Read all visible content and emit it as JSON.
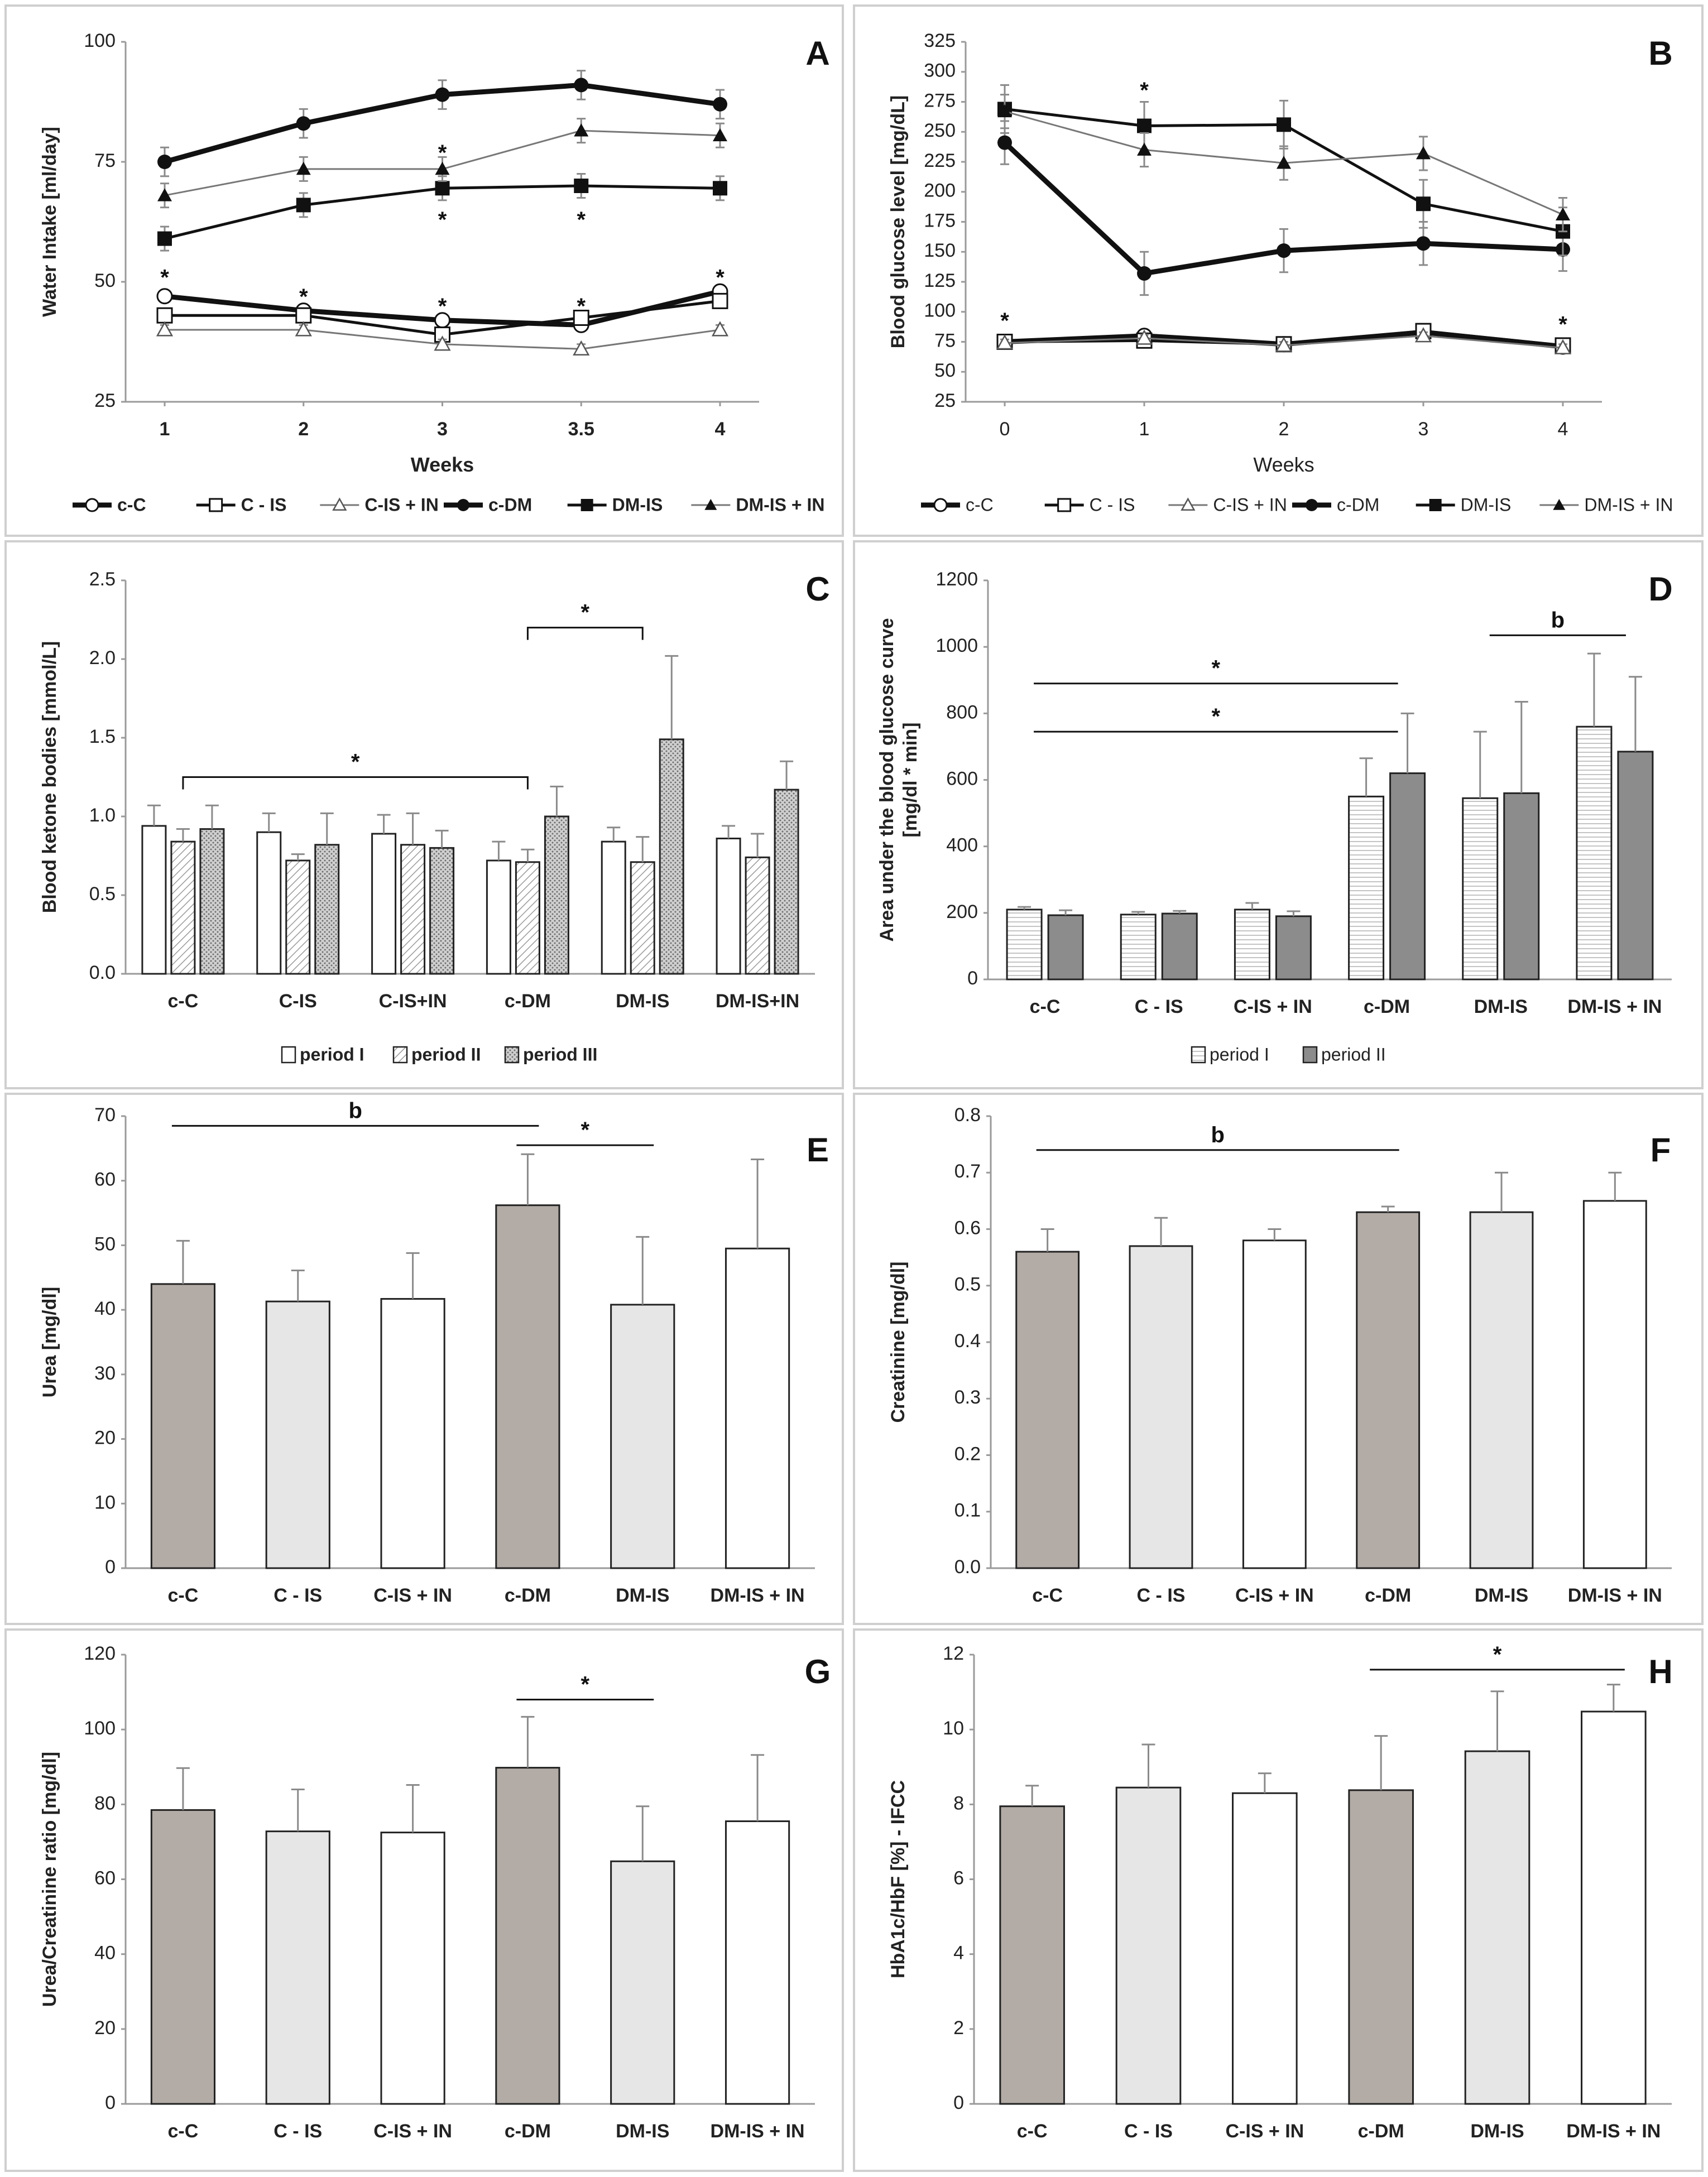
{
  "figure": {
    "colors": {
      "darkGray": "#b2aba6",
      "lightGray": "#e6e6e6",
      "white": "#ffffff",
      "medGray": "#8c8c8c",
      "black": "#111111"
    }
  },
  "chart_data": [
    {
      "panel": "A",
      "type": "line",
      "xlabel": "Weeks",
      "ylabel": "Water Intake [ml/day]",
      "x": [
        "1",
        "2",
        "3",
        "3.5",
        "4"
      ],
      "ylim": [
        25,
        100
      ],
      "yticks": [
        25,
        50,
        75,
        100
      ],
      "series": [
        {
          "name": "c-C",
          "marker": "circle-open",
          "weight": "thick",
          "values": [
            47,
            44,
            42,
            41,
            48
          ],
          "err": [
            1,
            1,
            1,
            1,
            1
          ]
        },
        {
          "name": "C - IS",
          "marker": "square-open",
          "weight": "medium",
          "values": [
            43,
            43,
            39,
            42.5,
            46
          ],
          "err": [
            1,
            1,
            1,
            1,
            1
          ]
        },
        {
          "name": "C-IS + IN",
          "marker": "triangle-open",
          "weight": "thin",
          "values": [
            40,
            40,
            37,
            36,
            40
          ],
          "err": [
            1,
            1,
            1,
            1,
            1
          ]
        },
        {
          "name": "c-DM",
          "marker": "circle-filled",
          "weight": "thick",
          "values": [
            75,
            83,
            89,
            91,
            87
          ],
          "err": [
            3,
            3,
            3,
            3,
            3
          ]
        },
        {
          "name": "DM-IS",
          "marker": "square-filled",
          "weight": "medium",
          "values": [
            59,
            66,
            69.5,
            70,
            69.5
          ],
          "err": [
            2.5,
            2.5,
            2.5,
            2.5,
            2.5
          ]
        },
        {
          "name": "DM-IS + IN",
          "marker": "triangle-filled",
          "weight": "thin",
          "values": [
            68,
            73.5,
            73.5,
            81.5,
            80.5
          ],
          "err": [
            2.5,
            2.5,
            2.5,
            2.5,
            2.5
          ]
        }
      ],
      "annotations": [
        {
          "text": "*",
          "x": "1",
          "y": 51
        },
        {
          "text": "*",
          "x": "2",
          "y": 47
        },
        {
          "text": "*",
          "x": "3",
          "y": 45
        },
        {
          "text": "*",
          "x": "3.5",
          "y": 45
        },
        {
          "text": "*",
          "x": "4",
          "y": 51
        },
        {
          "text": "*",
          "x": "3",
          "y": 77
        },
        {
          "text": "*",
          "x": "3",
          "y": 63
        },
        {
          "text": "*",
          "x": "3.5",
          "y": 63
        }
      ],
      "title": "A"
    },
    {
      "panel": "B",
      "type": "line",
      "xlabel": "Weeks",
      "ylabel": "Blood glucose level [mg/dL]",
      "x": [
        "0",
        "1",
        "2",
        "3",
        "4"
      ],
      "ylim": [
        25,
        325
      ],
      "yticks": [
        25,
        50,
        75,
        100,
        125,
        150,
        175,
        200,
        225,
        250,
        275,
        300,
        325
      ],
      "series": [
        {
          "name": "c-C",
          "marker": "circle-open",
          "weight": "thick",
          "values": [
            75,
            80,
            73,
            83,
            71
          ],
          "err": [
            3,
            3,
            3,
            3,
            3
          ]
        },
        {
          "name": "C - IS",
          "marker": "square-open",
          "weight": "medium",
          "values": [
            75,
            76,
            73,
            84,
            72
          ],
          "err": [
            3,
            3,
            3,
            3,
            3
          ]
        },
        {
          "name": "C-IS + IN",
          "marker": "triangle-open",
          "weight": "thin",
          "values": [
            74,
            78,
            72,
            80,
            70
          ],
          "err": [
            3,
            3,
            3,
            3,
            3
          ]
        },
        {
          "name": "c-DM",
          "marker": "circle-filled",
          "weight": "thick",
          "values": [
            241,
            132,
            151,
            157,
            152
          ],
          "err": [
            18,
            18,
            18,
            18,
            18
          ]
        },
        {
          "name": "DM-IS",
          "marker": "square-filled",
          "weight": "medium",
          "values": [
            269,
            255,
            256,
            190,
            167
          ],
          "err": [
            20,
            20,
            20,
            20,
            20
          ]
        },
        {
          "name": "DM-IS + IN",
          "marker": "triangle-filled",
          "weight": "thin",
          "values": [
            267,
            235,
            224,
            232,
            181
          ],
          "err": [
            14,
            14,
            14,
            14,
            14
          ]
        }
      ],
      "annotations": [
        {
          "text": "*",
          "x": "0",
          "y": 93
        },
        {
          "text": "*",
          "x": "1",
          "y": 285
        },
        {
          "text": "*",
          "x": "4",
          "y": 90
        }
      ],
      "title": "B"
    },
    {
      "panel": "C",
      "type": "bar",
      "ylabel": "Blood ketone bodies [mmol/L]",
      "categories": [
        "c-C",
        "C-IS",
        "C-IS+IN",
        "c-DM",
        "DM-IS",
        "DM-IS+IN"
      ],
      "ylim": [
        0,
        2.5
      ],
      "yticks": [
        "0.0",
        "0.5",
        "1.0",
        "1.5",
        "2.0",
        "2.5"
      ],
      "series": [
        {
          "name": "period I",
          "pattern": "plain",
          "values": [
            0.94,
            0.9,
            0.89,
            0.72,
            0.84,
            0.86
          ],
          "err": [
            0.13,
            0.12,
            0.12,
            0.12,
            0.09,
            0.08
          ]
        },
        {
          "name": "period II",
          "pattern": "diagonal",
          "values": [
            0.84,
            0.72,
            0.82,
            0.71,
            0.71,
            0.74
          ],
          "err": [
            0.08,
            0.04,
            0.2,
            0.08,
            0.16,
            0.15
          ]
        },
        {
          "name": "period III",
          "pattern": "dots",
          "values": [
            0.92,
            0.82,
            0.8,
            1.0,
            1.49,
            1.17
          ],
          "err": [
            0.15,
            0.2,
            0.11,
            0.19,
            0.53,
            0.18
          ]
        }
      ],
      "annotations": [
        {
          "text": "*",
          "from": "c-C",
          "to": "c-DM",
          "y": 1.25
        },
        {
          "text": "*",
          "from": "c-DM",
          "to": "DM-IS",
          "y": 2.2
        }
      ],
      "title": "C"
    },
    {
      "panel": "D",
      "type": "bar",
      "ylabel": "Area under the blood glucose curve [mg/dl * min]",
      "ylabel_lines": [
        "Area under the blood glucose curve",
        "[mg/dl * min]"
      ],
      "categories": [
        "c-C",
        "C - IS",
        "C-IS + IN",
        "c-DM",
        "DM-IS",
        "DM-IS + IN"
      ],
      "ylim": [
        0,
        1200
      ],
      "yticks": [
        0,
        200,
        400,
        600,
        800,
        1000,
        1200
      ],
      "series": [
        {
          "name": "period I",
          "pattern": "hlines",
          "values": [
            210,
            195,
            210,
            550,
            545,
            760
          ],
          "err": [
            8,
            8,
            20,
            115,
            200,
            220
          ]
        },
        {
          "name": "period II",
          "pattern": "solid-gray",
          "values": [
            193,
            198,
            190,
            620,
            560,
            685
          ],
          "err": [
            15,
            8,
            15,
            180,
            275,
            225
          ]
        }
      ],
      "annotations": [
        {
          "text": "*",
          "from": "c-C",
          "to": "c-DM",
          "y": 890
        },
        {
          "text": "*",
          "from": "c-C",
          "to": "c-DM",
          "y": 745
        },
        {
          "text": "b",
          "from": "DM-IS",
          "to": "DM-IS + IN",
          "y": 1035
        }
      ],
      "title": "D"
    },
    {
      "panel": "E",
      "type": "bar",
      "ylabel": "Urea [mg/dl]",
      "categories": [
        "c-C",
        "C - IS",
        "C-IS + IN",
        "c-DM",
        "DM-IS",
        "DM-IS + IN"
      ],
      "ylim": [
        0,
        70
      ],
      "yticks": [
        0,
        10,
        20,
        30,
        40,
        50,
        60,
        70
      ],
      "values": [
        44,
        41.3,
        41.7,
        56.2,
        40.8,
        49.5
      ],
      "err": [
        6.7,
        4.8,
        7.1,
        7.9,
        10.5,
        13.8
      ],
      "fills": [
        "dark",
        "light",
        "white",
        "dark",
        "light",
        "white"
      ],
      "annotations": [
        {
          "text": "b",
          "from": "c-C",
          "to": "c-DM",
          "y": 68.5
        },
        {
          "text": "*",
          "from": "c-DM",
          "to": "DM-IS",
          "y": 65.5
        }
      ],
      "title": "E"
    },
    {
      "panel": "F",
      "type": "bar",
      "ylabel": "Creatinine [mg/dl]",
      "categories": [
        "c-C",
        "C - IS",
        "C-IS + IN",
        "c-DM",
        "DM-IS",
        "DM-IS + IN"
      ],
      "ylim": [
        0,
        0.8
      ],
      "yticks": [
        "0.0",
        "0.1",
        "0.2",
        "0.3",
        "0.4",
        "0.5",
        "0.6",
        "0.7",
        "0.8"
      ],
      "values": [
        0.56,
        0.57,
        0.58,
        0.63,
        0.63,
        0.65
      ],
      "err": [
        0.04,
        0.05,
        0.02,
        0.01,
        0.07,
        0.05
      ],
      "fills": [
        "dark",
        "light",
        "white",
        "dark",
        "light",
        "white"
      ],
      "annotations": [
        {
          "text": "b",
          "from": "c-C",
          "to": "c-DM",
          "y": 0.74
        }
      ],
      "title": "F"
    },
    {
      "panel": "G",
      "type": "bar",
      "ylabel": "Urea/Creatinine ratio [mg/dl]",
      "categories": [
        "c-C",
        "C - IS",
        "C-IS + IN",
        "c-DM",
        "DM-IS",
        "DM-IS + IN"
      ],
      "ylim": [
        0,
        120
      ],
      "yticks": [
        0,
        20,
        40,
        60,
        80,
        100,
        120
      ],
      "values": [
        78.5,
        72.8,
        72.5,
        89.8,
        64.8,
        75.5
      ],
      "err": [
        11.2,
        11.2,
        12.7,
        13.6,
        14.7,
        17.7
      ],
      "fills": [
        "dark",
        "light",
        "white",
        "dark",
        "light",
        "white"
      ],
      "annotations": [
        {
          "text": "*",
          "from": "c-DM",
          "to": "DM-IS",
          "y": 108
        }
      ],
      "title": "G"
    },
    {
      "panel": "H",
      "type": "bar",
      "ylabel": "HbA1c/HbF [%] - IFCC",
      "categories": [
        "c-C",
        "C - IS",
        "C-IS + IN",
        "c-DM",
        "DM-IS",
        "DM-IS + IN"
      ],
      "ylim": [
        0,
        12
      ],
      "yticks": [
        0,
        2,
        4,
        6,
        8,
        10,
        12
      ],
      "values": [
        7.95,
        8.45,
        8.3,
        8.38,
        9.42,
        10.48
      ],
      "err": [
        0.55,
        1.15,
        0.53,
        1.45,
        1.6,
        0.72
      ],
      "fills": [
        "dark",
        "light",
        "white",
        "dark",
        "light",
        "white"
      ],
      "annotations": [
        {
          "text": "*",
          "from": "c-DM",
          "to": "DM-IS + IN",
          "y": 11.6
        }
      ],
      "title": "H"
    }
  ]
}
